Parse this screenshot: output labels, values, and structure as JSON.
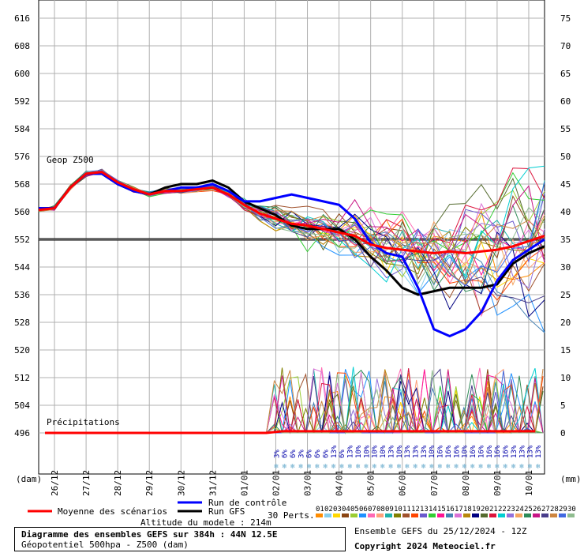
{
  "chart_data": {
    "type": "line",
    "title": "Diagramme des ensembles GEFS sur 384h : 44N 12.5E",
    "subtitle": "Géopotentiel 500hpa - Z500 (dam)",
    "ylabel_left": "(dam)",
    "ylabel_right": "(mm)",
    "ylim_left": [
      492,
      620
    ],
    "ylim_right": [
      -2,
      78
    ],
    "yticks_left": [
      616,
      608,
      600,
      592,
      584,
      576,
      568,
      560,
      552,
      544,
      536,
      528,
      520,
      512,
      504,
      496
    ],
    "yticks_right": [
      75,
      70,
      65,
      60,
      55,
      50,
      45,
      40,
      35,
      30,
      25,
      20,
      15,
      10,
      5,
      0
    ],
    "xlim": [
      25.5,
      41.5
    ],
    "x_ticks": [
      {
        "x": 26,
        "label": "26/12"
      },
      {
        "x": 27,
        "label": "27/12"
      },
      {
        "x": 28,
        "label": "28/12"
      },
      {
        "x": 29,
        "label": "29/12"
      },
      {
        "x": 30,
        "label": "30/12"
      },
      {
        "x": 31,
        "label": "31/12"
      },
      {
        "x": 32,
        "label": "01/01"
      },
      {
        "x": 33,
        "label": "02/01"
      },
      {
        "x": 34,
        "label": "03/01"
      },
      {
        "x": 35,
        "label": "04/01"
      },
      {
        "x": 36,
        "label": "05/01"
      },
      {
        "x": 37,
        "label": "06/01"
      },
      {
        "x": 38,
        "label": "07/01"
      },
      {
        "x": 39,
        "label": "08/01"
      },
      {
        "x": 40,
        "label": "09/01"
      },
      {
        "x": 41,
        "label": "10/01"
      }
    ],
    "reference_line": 552,
    "geop_label": "Geop Z500",
    "precip_label": "Précipitations",
    "probabilities": [
      "3%",
      "6%",
      "6%",
      "3%",
      "6%",
      "6%",
      "6%",
      "13%",
      "6%",
      "13%",
      "10%",
      "10%",
      "10%",
      "10%",
      "13%",
      "10%",
      "13%",
      "13%",
      "13%",
      "10%",
      "16%",
      "16%",
      "16%",
      "10%",
      "16%",
      "16%",
      "16%",
      "16%",
      "16%",
      "13%",
      "13%",
      "13%",
      "13%"
    ],
    "series": [
      {
        "name": "Moyenne des scénarios",
        "color": "#ff0000",
        "x": [
          25.5,
          26,
          26.5,
          27,
          27.5,
          28,
          28.5,
          29,
          29.5,
          30,
          30.5,
          31,
          31.5,
          32,
          32.5,
          33,
          33.5,
          34,
          34.5,
          35,
          35.5,
          36,
          36.5,
          37,
          37.5,
          38,
          38.5,
          39,
          39.5,
          40,
          40.5,
          41,
          41.5
        ],
        "y": [
          560.5,
          561,
          567,
          571,
          571.5,
          568.5,
          566.5,
          565,
          566,
          566,
          566.5,
          567,
          565,
          562,
          559.5,
          558,
          556.5,
          556,
          555,
          554,
          553,
          550.5,
          549.5,
          549,
          548.5,
          548,
          548.5,
          548,
          548.5,
          549,
          550,
          551.5,
          553
        ]
      },
      {
        "name": "Run de contrôle",
        "color": "#0000ff",
        "x": [
          25.5,
          26,
          26.5,
          27,
          27.5,
          28,
          28.5,
          29,
          29.5,
          30,
          30.5,
          31,
          31.5,
          32,
          32.5,
          33,
          33.5,
          34,
          34.5,
          35,
          35.5,
          36,
          36.5,
          37,
          37.5,
          38,
          38.5,
          39,
          39.5,
          40,
          40.5,
          41,
          41.5
        ],
        "y": [
          561,
          561,
          567,
          571,
          571,
          568,
          566,
          565,
          566,
          567,
          567,
          568,
          566,
          563,
          563,
          564,
          565,
          564,
          563,
          562,
          558,
          551,
          548,
          547,
          538,
          526,
          524,
          526,
          531,
          540,
          546,
          549,
          552
        ]
      },
      {
        "name": "Run GFS",
        "color": "#000000",
        "x": [
          25.5,
          26,
          26.5,
          27,
          27.5,
          28,
          28.5,
          29,
          29.5,
          30,
          30.5,
          31,
          31.5,
          32,
          32.5,
          33,
          33.5,
          34,
          34.5,
          35,
          35.5,
          36,
          36.5,
          37,
          37.5,
          38,
          38.5,
          39,
          39.5,
          40,
          40.5,
          41,
          41.5
        ],
        "y": [
          561,
          561,
          567,
          571,
          571,
          568,
          566,
          565,
          567,
          568,
          568,
          569,
          567,
          563,
          561,
          559,
          556,
          555,
          555,
          555,
          552,
          547,
          543,
          538,
          536,
          537,
          538,
          538,
          538,
          539,
          545,
          548,
          550
        ]
      }
    ],
    "legend": {
      "mean": "Moyenne des scénarios",
      "control": "Run de contrôle",
      "gfs": "Run GFS",
      "perts": "30 Perts."
    },
    "pert_numbers": [
      "01",
      "02",
      "03",
      "04",
      "05",
      "06",
      "07",
      "08",
      "09",
      "10",
      "11",
      "12",
      "13",
      "14",
      "15",
      "16",
      "17",
      "18",
      "19",
      "20",
      "21",
      "22",
      "23",
      "24",
      "25",
      "26",
      "27",
      "28",
      "29",
      "30"
    ],
    "pert_colors": [
      "#ff8c00",
      "#87ceeb",
      "#ffd700",
      "#8b4513",
      "#9acd32",
      "#1e90ff",
      "#ff69b4",
      "#ffa07a",
      "#20b2aa",
      "#808000",
      "#a0522d",
      "#ff4500",
      "#6a5acd",
      "#32cd32",
      "#ff1493",
      "#4682b4",
      "#da70d6",
      "#b8860b",
      "#000080",
      "#556b2f",
      "#dc143c",
      "#00ced1",
      "#9370db",
      "#f4a460",
      "#2e8b57",
      "#c71585",
      "#483d8b",
      "#cd853f",
      "#4169e1",
      "#8fbc8f"
    ]
  },
  "footer": {
    "altitude": "Altitude du modele : 214m",
    "title": "Diagramme des ensembles GEFS sur 384h : 44N 12.5E",
    "subtitle": "Géopotentiel 500hpa - Z500 (dam)",
    "run": "Ensemble GEFS du 25/12/2024 - 12Z",
    "copyright": "Copyright 2024 Meteociel.fr"
  }
}
